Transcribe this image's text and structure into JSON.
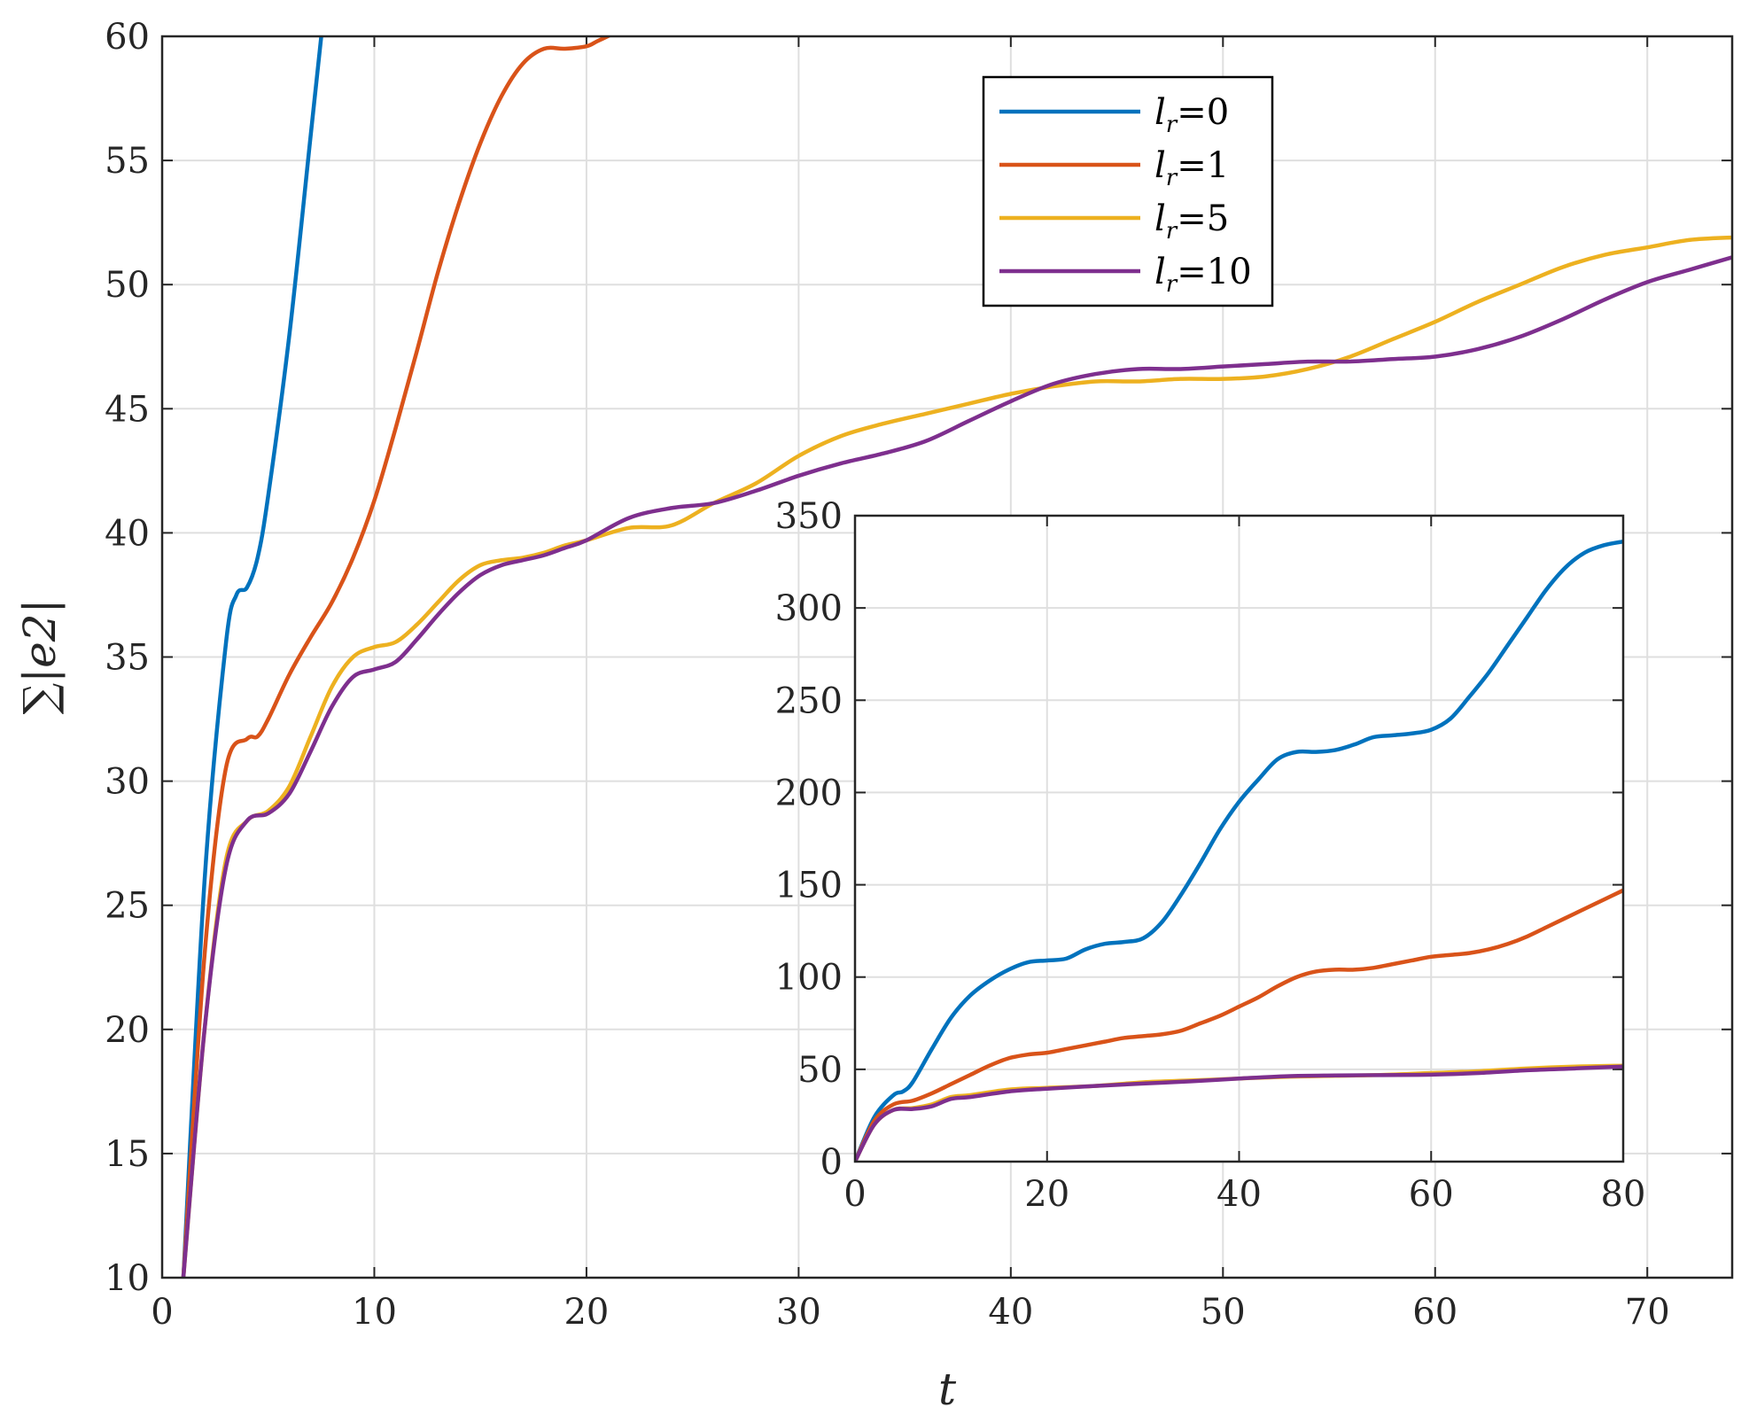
{
  "chart_data": [
    {
      "type": "line",
      "xlabel": "t",
      "ylabel": "∑|e2|",
      "xlim": [
        0,
        74
      ],
      "ylim": [
        10,
        60
      ],
      "xticks": [
        "0",
        "10",
        "20",
        "30",
        "40",
        "50",
        "60",
        "70"
      ],
      "yticks": [
        "10",
        "15",
        "20",
        "25",
        "30",
        "35",
        "40",
        "45",
        "50",
        "55",
        "60"
      ],
      "grid": true,
      "legend": {
        "placement": "top-center"
      },
      "series": [
        {
          "name": "l_r=0",
          "legend_base": "l",
          "legend_sub": "r",
          "legend_value": "=0",
          "color": "#0072BD",
          "x": [
            1,
            2,
            3,
            3.5,
            4,
            4.5,
            5,
            6,
            7,
            7.5
          ],
          "y": [
            10,
            26,
            35.5,
            37.5,
            37.8,
            39,
            41.5,
            48,
            56,
            60
          ]
        },
        {
          "name": "l_r=1",
          "legend_base": "l",
          "legend_sub": "r",
          "legend_value": "=1",
          "color": "#D95319",
          "x": [
            1,
            2,
            3,
            4,
            4.5,
            5,
            6,
            7,
            8,
            9,
            10,
            11,
            12,
            13,
            14,
            15,
            16,
            17,
            18,
            19,
            20,
            20.5,
            21,
            21.5
          ],
          "y": [
            10,
            23,
            30.5,
            31.7,
            31.8,
            32.5,
            34.3,
            35.8,
            37.2,
            39,
            41.3,
            44.2,
            47.3,
            50.5,
            53.3,
            55.7,
            57.6,
            58.9,
            59.5,
            59.5,
            59.6,
            59.8,
            60,
            60.2
          ]
        },
        {
          "name": "l_r=5",
          "legend_base": "l",
          "legend_sub": "r",
          "legend_value": "=5",
          "color": "#EDB120",
          "x": [
            1,
            2,
            3,
            4,
            5,
            6,
            7,
            8,
            9,
            10,
            11,
            12,
            13,
            14,
            15,
            16,
            17,
            18,
            19,
            20,
            22,
            24,
            26,
            28,
            30,
            32,
            34,
            36,
            38,
            40,
            42,
            44,
            46,
            48,
            50,
            52,
            54,
            56,
            58,
            60,
            62,
            64,
            66,
            68,
            70,
            72,
            74
          ],
          "y": [
            10,
            20,
            26.8,
            28.4,
            28.8,
            29.8,
            31.8,
            33.8,
            35,
            35.4,
            35.6,
            36.3,
            37.2,
            38.1,
            38.7,
            38.9,
            39,
            39.2,
            39.5,
            39.7,
            40.2,
            40.3,
            41.2,
            42,
            43.1,
            43.9,
            44.4,
            44.8,
            45.2,
            45.6,
            45.9,
            46.1,
            46.1,
            46.2,
            46.2,
            46.3,
            46.6,
            47.1,
            47.8,
            48.5,
            49.3,
            50,
            50.7,
            51.2,
            51.5,
            51.8,
            51.9
          ]
        },
        {
          "name": "l_r=10",
          "legend_base": "l",
          "legend_sub": "r",
          "legend_value": "=10",
          "color": "#7E2F8E",
          "x": [
            1,
            2,
            3,
            4,
            5,
            6,
            7,
            8,
            9,
            10,
            11,
            12,
            13,
            14,
            15,
            16,
            17,
            18,
            19,
            20,
            22,
            24,
            26,
            28,
            30,
            32,
            34,
            36,
            38,
            40,
            42,
            44,
            46,
            48,
            50,
            52,
            54,
            56,
            58,
            60,
            62,
            64,
            66,
            68,
            70,
            72,
            74
          ],
          "y": [
            10,
            20,
            26.5,
            28.4,
            28.7,
            29.5,
            31.2,
            33,
            34.2,
            34.5,
            34.8,
            35.7,
            36.7,
            37.6,
            38.3,
            38.7,
            38.9,
            39.1,
            39.4,
            39.7,
            40.6,
            41,
            41.2,
            41.7,
            42.3,
            42.8,
            43.2,
            43.7,
            44.5,
            45.3,
            46,
            46.4,
            46.6,
            46.6,
            46.7,
            46.8,
            46.9,
            46.9,
            47,
            47.1,
            47.4,
            47.9,
            48.6,
            49.4,
            50.1,
            50.6,
            51.1
          ]
        }
      ]
    },
    {
      "type": "line",
      "xlim": [
        0,
        80
      ],
      "ylim": [
        0,
        350
      ],
      "xticks": [
        "0",
        "20",
        "40",
        "60",
        "80"
      ],
      "yticks": [
        "0",
        "50",
        "100",
        "150",
        "200",
        "250",
        "300",
        "350"
      ],
      "grid": true,
      "series": [
        {
          "color": "#0072BD",
          "x": [
            0,
            2,
            4,
            5,
            6,
            8,
            10,
            12,
            14,
            16,
            18,
            20,
            22,
            24,
            26,
            28,
            30,
            32,
            34,
            36,
            38,
            40,
            42,
            44,
            46,
            48,
            50,
            52,
            54,
            56,
            58,
            60,
            62,
            64,
            66,
            68,
            70,
            72,
            74,
            76,
            78,
            80
          ],
          "y": [
            0,
            24,
            36,
            38,
            43,
            61,
            78,
            90,
            98,
            104,
            108,
            109,
            110,
            115,
            118,
            119,
            121,
            130,
            145,
            162,
            180,
            195,
            207,
            218,
            222,
            222,
            223,
            226,
            230,
            231,
            232,
            234,
            240,
            252,
            265,
            280,
            295,
            310,
            322,
            330,
            334,
            336
          ]
        },
        {
          "color": "#D95319",
          "x": [
            0,
            2,
            4,
            6,
            8,
            10,
            12,
            14,
            16,
            18,
            20,
            22,
            24,
            26,
            28,
            30,
            32,
            34,
            36,
            38,
            40,
            42,
            44,
            46,
            48,
            50,
            52,
            54,
            56,
            58,
            60,
            62,
            64,
            66,
            68,
            70,
            72,
            74,
            76,
            78,
            80
          ],
          "y": [
            0,
            22,
            31,
            33,
            37,
            42,
            47,
            52,
            56,
            58,
            59,
            61,
            63,
            65,
            67,
            68,
            69,
            71,
            75,
            79,
            84,
            89,
            95,
            100,
            103,
            104,
            104,
            105,
            107,
            109,
            111,
            112,
            113,
            115,
            118,
            122,
            127,
            132,
            137,
            142,
            147
          ]
        },
        {
          "color": "#EDB120",
          "x": [
            0,
            2,
            4,
            6,
            8,
            10,
            12,
            16,
            20,
            25,
            30,
            35,
            40,
            45,
            50,
            55,
            60,
            65,
            70,
            75,
            80
          ],
          "y": [
            0,
            20,
            28,
            29,
            31,
            35,
            36,
            39,
            40,
            41,
            43,
            44,
            45,
            46,
            46.5,
            47,
            48,
            49,
            50.5,
            51.5,
            52
          ]
        },
        {
          "color": "#7E2F8E",
          "x": [
            0,
            2,
            4,
            6,
            8,
            10,
            12,
            16,
            20,
            25,
            30,
            35,
            40,
            45,
            50,
            55,
            60,
            65,
            70,
            75,
            80
          ],
          "y": [
            0,
            20,
            28,
            28.5,
            30,
            34,
            35,
            38,
            39.5,
            41,
            42.3,
            43.5,
            45,
            46.3,
            46.7,
            46.9,
            47.1,
            48,
            49.5,
            50.5,
            51.5
          ]
        }
      ]
    }
  ]
}
